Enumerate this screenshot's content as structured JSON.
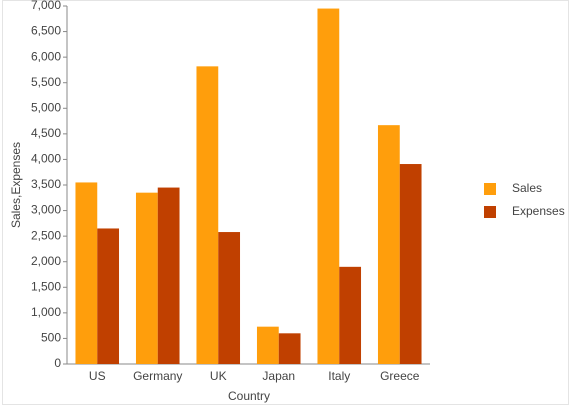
{
  "chart_data": {
    "type": "bar",
    "categories": [
      "US",
      "Germany",
      "UK",
      "Japan",
      "Italy",
      "Greece"
    ],
    "series": [
      {
        "name": "Sales",
        "color": "#ff9e0c",
        "values": [
          3550,
          3350,
          5820,
          730,
          6950,
          4670
        ]
      },
      {
        "name": "Expenses",
        "color": "#c04000",
        "values": [
          2650,
          3450,
          2580,
          600,
          1900,
          3910
        ]
      }
    ],
    "x_label": "Country",
    "y_label": "Sales,Expenses",
    "ylim": [
      0,
      7000
    ],
    "yticks": [
      0,
      500,
      {
        "value": 1000,
        "label": "1,000"
      },
      {
        "value": 1500,
        "label": "1,500"
      },
      {
        "value": 2000,
        "label": "2,000"
      },
      {
        "value": 2500,
        "label": "2,500"
      },
      {
        "value": 3000,
        "label": "3,000"
      },
      {
        "value": 3500,
        "label": "3,500"
      },
      {
        "value": 4000,
        "label": "4,000"
      },
      {
        "value": 4500,
        "label": "4,500"
      },
      {
        "value": 5000,
        "label": "5,000"
      },
      {
        "value": 5500,
        "label": "5,500"
      },
      {
        "value": 6000,
        "label": "6,000"
      },
      {
        "value": 6500,
        "label": "6,500"
      },
      {
        "value": 7000,
        "label": "7,000"
      }
    ],
    "grid": false,
    "legend": "right"
  }
}
